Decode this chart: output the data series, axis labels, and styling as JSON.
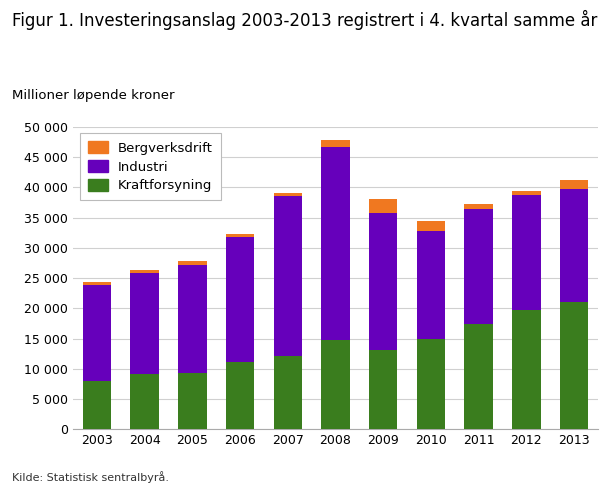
{
  "years": [
    2003,
    2004,
    2005,
    2006,
    2007,
    2008,
    2009,
    2010,
    2011,
    2012,
    2013
  ],
  "kraftforsyning": [
    8000,
    9100,
    9300,
    11200,
    12200,
    14800,
    13200,
    15000,
    17500,
    19800,
    21000
  ],
  "industri": [
    15800,
    16700,
    17800,
    20600,
    26400,
    31800,
    22600,
    17800,
    18900,
    19000,
    18800
  ],
  "bergverksdrift": [
    500,
    600,
    800,
    500,
    400,
    1200,
    2200,
    1600,
    800,
    600,
    1400
  ],
  "colors": {
    "kraftforsyning": "#3a7d1e",
    "industri": "#6600bb",
    "bergverksdrift": "#f07820"
  },
  "title": "Figur 1. Investeringsanslag 2003-2013 registrert i 4. kvartal samme år",
  "ylabel_text": "Millioner løpende kroner",
  "source": "Kilde: Statistisk sentralbyrå.",
  "ylim": [
    0,
    50000
  ],
  "yticks": [
    0,
    5000,
    10000,
    15000,
    20000,
    25000,
    30000,
    35000,
    40000,
    45000,
    50000
  ],
  "title_fontsize": 12,
  "label_fontsize": 9.5,
  "tick_fontsize": 9,
  "source_fontsize": 8,
  "bar_width": 0.6,
  "legend_fontsize": 9.5,
  "bg_color": "#ffffff",
  "plot_bg_color": "#ffffff",
  "grid_color": "#d0d0d0"
}
